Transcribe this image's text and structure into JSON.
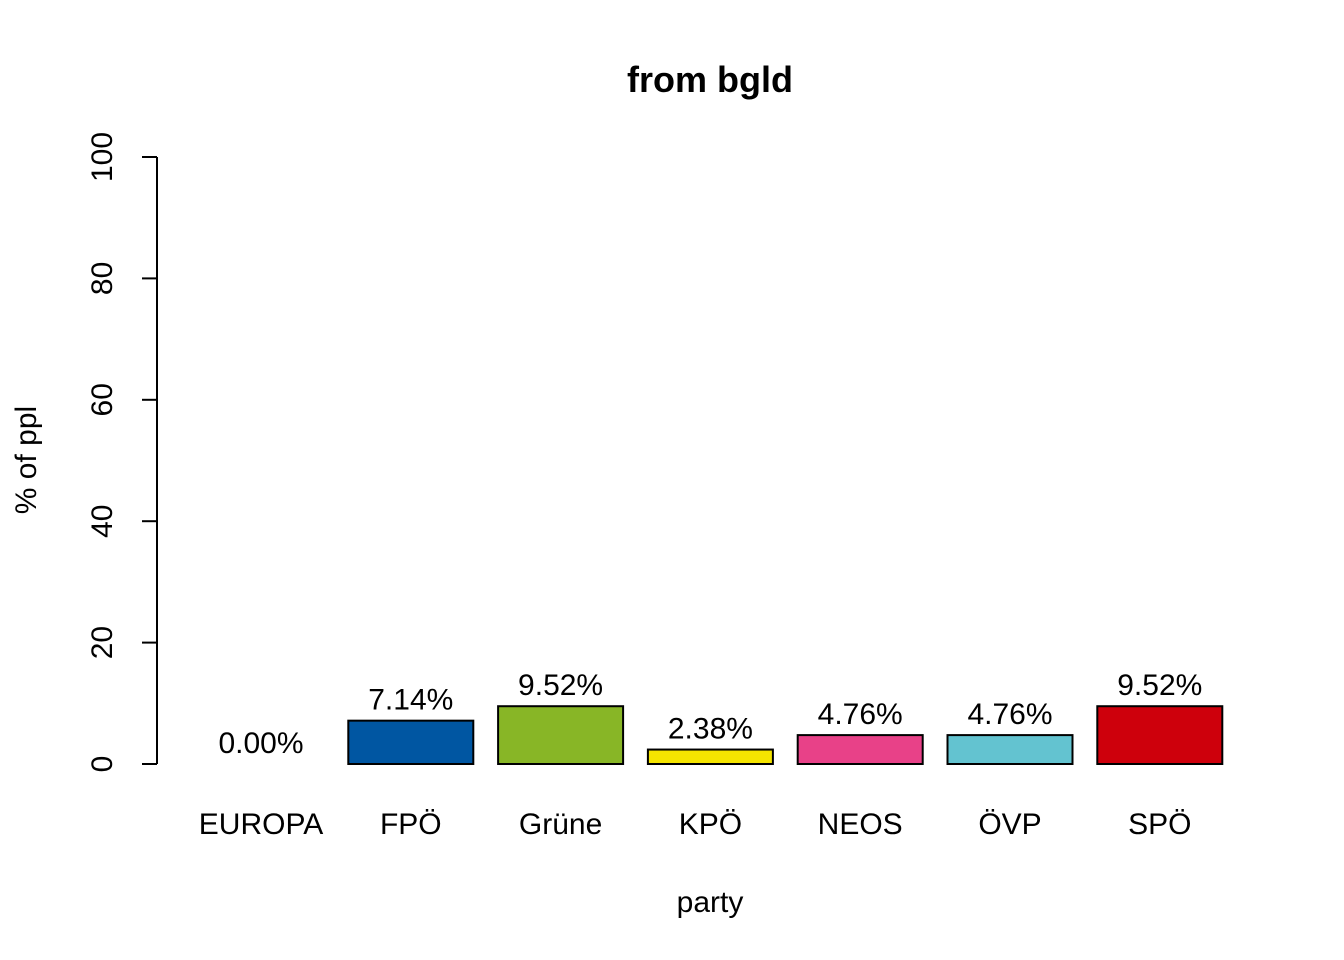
{
  "chart_data": {
    "type": "bar",
    "title": "from bgld",
    "xlabel": "party",
    "ylabel": "% of ppl",
    "ylim": [
      0,
      100
    ],
    "yticks": [
      0,
      20,
      40,
      60,
      80,
      100
    ],
    "grid": false,
    "categories": [
      "EUROPA",
      "FPÖ",
      "Grüne",
      "KPÖ",
      "NEOS",
      "ÖVP",
      "SPÖ"
    ],
    "values": [
      0.0,
      7.14,
      9.52,
      2.38,
      4.76,
      4.76,
      9.52
    ],
    "data_labels": [
      "0.00%",
      "7.14%",
      "9.52%",
      "2.38%",
      "4.76%",
      "4.76%",
      "9.52%"
    ],
    "colors": [
      "#000000",
      "#0056A2",
      "#88B626",
      "#F5E400",
      "#E84188",
      "#63C3D0",
      "#CE000C"
    ]
  }
}
